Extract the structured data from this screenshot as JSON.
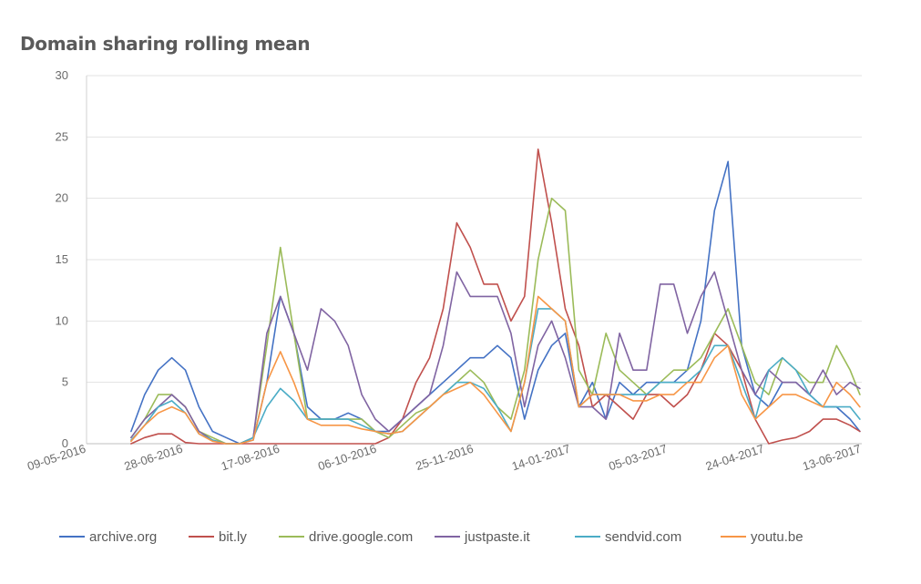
{
  "chart_data": {
    "type": "line",
    "title": "Domain sharing rolling mean",
    "xlabel": "",
    "ylabel": "",
    "ylim": [
      0,
      30
    ],
    "yticks": [
      "0",
      "5",
      "10",
      "15",
      "20",
      "25",
      "30"
    ],
    "xlim": [
      "2016-05-09",
      "2017-06-13"
    ],
    "xticks": [
      "09-05-2016",
      "28-06-2016",
      "17-08-2016",
      "06-10-2016",
      "25-11-2016",
      "14-01-2017",
      "05-03-2017",
      "24-04-2017",
      "13-06-2017"
    ],
    "grid": "horizontal",
    "legend_position": "bottom",
    "x": [
      "2016-06-01",
      "2016-06-08",
      "2016-06-15",
      "2016-06-22",
      "2016-06-29",
      "2016-07-06",
      "2016-07-13",
      "2016-07-20",
      "2016-07-27",
      "2016-08-03",
      "2016-08-10",
      "2016-08-17",
      "2016-08-24",
      "2016-08-31",
      "2016-09-07",
      "2016-09-14",
      "2016-09-21",
      "2016-09-28",
      "2016-10-05",
      "2016-10-12",
      "2016-10-19",
      "2016-10-26",
      "2016-11-02",
      "2016-11-09",
      "2016-11-16",
      "2016-11-23",
      "2016-11-30",
      "2016-12-07",
      "2016-12-14",
      "2016-12-21",
      "2016-12-28",
      "2017-01-04",
      "2017-01-11",
      "2017-01-18",
      "2017-01-25",
      "2017-02-01",
      "2017-02-08",
      "2017-02-15",
      "2017-02-22",
      "2017-03-01",
      "2017-03-08",
      "2017-03-15",
      "2017-03-22",
      "2017-03-29",
      "2017-04-05",
      "2017-04-12",
      "2017-04-19",
      "2017-04-26",
      "2017-05-03",
      "2017-05-10",
      "2017-05-17",
      "2017-05-24",
      "2017-05-31",
      "2017-06-07",
      "2017-06-12"
    ],
    "series": [
      {
        "name": "archive.org",
        "color": "#4472c4",
        "values": [
          1,
          4,
          6,
          7,
          6,
          3,
          1,
          0.5,
          0,
          0.3,
          5,
          12,
          9,
          3,
          2,
          2,
          2.5,
          2,
          1,
          1,
          2,
          3,
          4,
          5,
          6,
          7,
          7,
          8,
          7,
          2,
          6,
          8,
          9,
          3,
          5,
          2,
          5,
          4,
          5,
          5,
          5,
          6,
          10,
          19,
          23,
          8,
          4,
          3,
          5,
          5,
          4,
          3,
          3,
          2,
          1
        ]
      },
      {
        "name": "bit.ly",
        "color": "#c0504d",
        "values": [
          0,
          0.5,
          0.8,
          0.8,
          0.1,
          0,
          0,
          0,
          0,
          0,
          0,
          0,
          0,
          0,
          0,
          0,
          0,
          0,
          0,
          0.5,
          2,
          5,
          7,
          11,
          18,
          16,
          13,
          13,
          10,
          12,
          24,
          18,
          11,
          8,
          3,
          4,
          3,
          2,
          4,
          4,
          3,
          4,
          6,
          9,
          8,
          6,
          2,
          0,
          0.3,
          0.5,
          1,
          2,
          2,
          1.5,
          1
        ]
      },
      {
        "name": "drive.google.com",
        "color": "#9bbb59",
        "values": [
          0.5,
          2,
          4,
          4,
          3,
          1,
          0.5,
          0,
          0,
          0.5,
          8,
          16,
          9,
          2,
          2,
          2,
          2,
          2,
          1,
          0.5,
          1.5,
          2.5,
          3,
          4,
          5,
          6,
          5,
          3,
          2,
          6,
          15,
          20,
          19,
          6,
          4,
          9,
          6,
          5,
          4,
          5,
          6,
          6,
          7,
          9,
          11,
          8,
          5,
          4,
          7,
          6,
          5,
          5,
          8,
          6,
          4
        ]
      },
      {
        "name": "justpaste.it",
        "color": "#8064a2",
        "values": [
          0.5,
          2,
          3,
          4,
          3,
          1,
          0.3,
          0,
          0,
          0.5,
          9,
          12,
          9,
          6,
          11,
          10,
          8,
          4,
          2,
          1,
          2,
          3,
          4,
          8,
          14,
          12,
          12,
          12,
          9,
          3,
          8,
          10,
          7,
          3,
          3,
          2,
          9,
          6,
          6,
          13,
          13,
          9,
          12,
          14,
          10,
          6,
          4,
          6,
          5,
          5,
          4,
          6,
          4,
          5,
          4.5
        ]
      },
      {
        "name": "sendvid.com",
        "color": "#4bacc6",
        "values": [
          0.3,
          1.5,
          3,
          3.5,
          2.5,
          0.8,
          0.3,
          0,
          0,
          0.5,
          3,
          4.5,
          3.5,
          2,
          2,
          2,
          2,
          1.5,
          1,
          0.8,
          1,
          2,
          3,
          4,
          5,
          5,
          4.5,
          3,
          1,
          5,
          11,
          11,
          10,
          3,
          4,
          4,
          4,
          4,
          4,
          5,
          5,
          5,
          6,
          8,
          8,
          5,
          2,
          6,
          7,
          6,
          4,
          3,
          3,
          3,
          2
        ]
      },
      {
        "name": "youtu.be",
        "color": "#f79646",
        "values": [
          0.2,
          1.5,
          2.5,
          3,
          2.5,
          0.8,
          0.2,
          0,
          0,
          0.3,
          5,
          7.5,
          5,
          2,
          1.5,
          1.5,
          1.5,
          1.2,
          1,
          0.8,
          1,
          2,
          3,
          4,
          4.5,
          5,
          4,
          2.5,
          1,
          5,
          12,
          11,
          10,
          3,
          4,
          4,
          4,
          3.5,
          3.5,
          4,
          4,
          5,
          5,
          7,
          8,
          4,
          2,
          3,
          4,
          4,
          3.5,
          3,
          5,
          4,
          3
        ]
      }
    ]
  }
}
